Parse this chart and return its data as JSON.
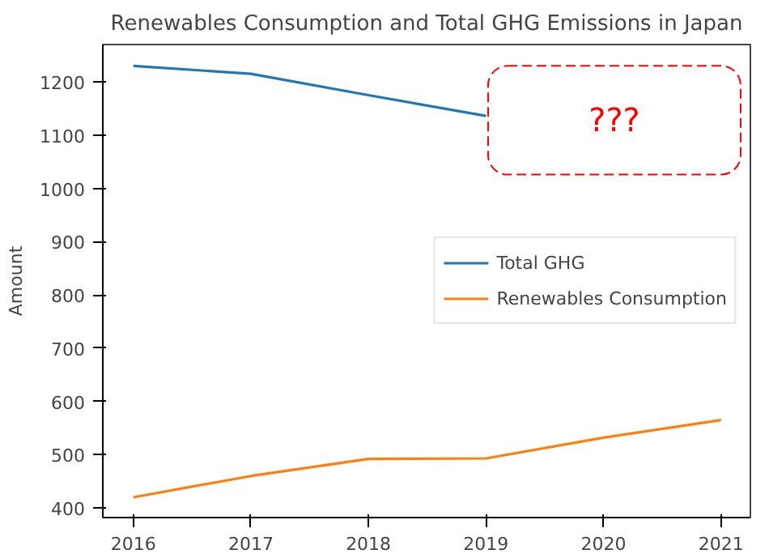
{
  "chart_data": {
    "type": "line",
    "title": "Renewables Consumption and Total GHG Emissions in Japan",
    "ylabel": "Amount",
    "x": [
      2016,
      2017,
      2018,
      2019,
      2020,
      2021
    ],
    "series": [
      {
        "name": "Total GHG",
        "color": "#1f77b4",
        "values": [
          1230,
          1215,
          1175,
          1136,
          null,
          null
        ]
      },
      {
        "name": "Renewables Consumption",
        "color": "#ff7f0e",
        "values": [
          420,
          460,
          492,
          493,
          532,
          565
        ]
      }
    ],
    "xlim": [
      2015.74,
      2021.25
    ],
    "ylim": [
      382,
      1270
    ],
    "xticks": [
      2016,
      2017,
      2018,
      2019,
      2020,
      2021
    ],
    "yticks": [
      400,
      500,
      600,
      700,
      800,
      900,
      1000,
      1100,
      1200
    ],
    "grid": false,
    "legend": "right",
    "marker": "none",
    "line_style": "solid",
    "annotations": [
      "???"
    ]
  }
}
